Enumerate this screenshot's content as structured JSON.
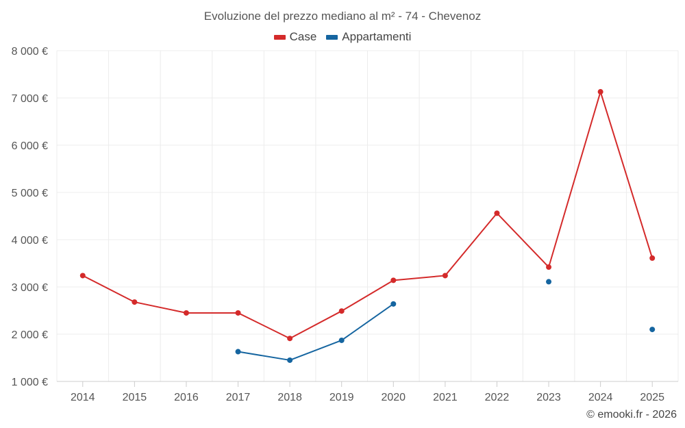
{
  "chart_data": {
    "type": "line",
    "title": "Evoluzione del prezzo mediano al m² - 74 - Chevenoz",
    "categories": [
      "2014",
      "2015",
      "2016",
      "2017",
      "2018",
      "2019",
      "2020",
      "2021",
      "2022",
      "2023",
      "2024",
      "2025"
    ],
    "ylim": [
      1000,
      8000
    ],
    "yticks": [
      1000,
      2000,
      3000,
      4000,
      5000,
      6000,
      7000,
      8000
    ],
    "ytick_labels": [
      "1 000 €",
      "2 000 €",
      "3 000 €",
      "4 000 €",
      "5 000 €",
      "6 000 €",
      "7 000 €",
      "8 000 €"
    ],
    "grid": true,
    "legend_position": "top-center",
    "series": [
      {
        "name": "Case",
        "color": "#d42a2a",
        "values": [
          3240,
          2680,
          2450,
          2450,
          1910,
          2490,
          3140,
          3240,
          4560,
          3420,
          7130,
          3610
        ]
      },
      {
        "name": "Appartamenti",
        "color": "#1565a0",
        "values": [
          null,
          null,
          null,
          1630,
          1450,
          1870,
          2640,
          null,
          null,
          3110,
          null,
          2100
        ]
      }
    ]
  },
  "credit": "© emooki.fr - 2026"
}
